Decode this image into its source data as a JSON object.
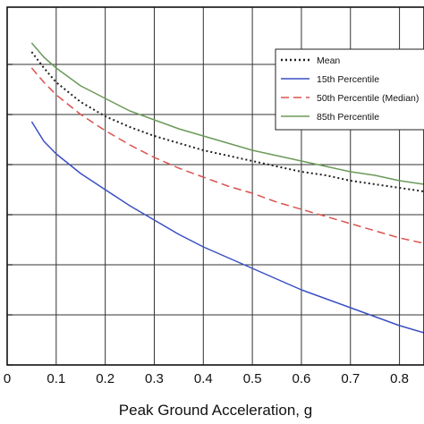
{
  "chart_data": {
    "type": "line",
    "xlabel": "Peak Ground Acceleration, g",
    "ylabel": "",
    "xlim": [
      0,
      0.85
    ],
    "ylim": [
      0,
      1.0
    ],
    "x_ticks": [
      0,
      0.1,
      0.2,
      0.3,
      0.4,
      0.5,
      0.6,
      0.7,
      0.8
    ],
    "x_tick_labels": [
      "0",
      "0.1",
      "0.2",
      "0.3",
      "0.4",
      "0.5",
      "0.6",
      "0.7",
      "0.8"
    ],
    "y_grid": [
      0,
      0.14,
      0.28,
      0.42,
      0.56,
      0.7,
      0.84
    ],
    "grid": true,
    "legend_position": "top-right",
    "series": [
      {
        "name": "Mean",
        "style": "dotted",
        "color": "#222222",
        "x": [
          0.05,
          0.075,
          0.1,
          0.15,
          0.2,
          0.25,
          0.3,
          0.35,
          0.4,
          0.45,
          0.5,
          0.55,
          0.6,
          0.65,
          0.7,
          0.75,
          0.8,
          0.85
        ],
        "y": [
          0.875,
          0.83,
          0.79,
          0.735,
          0.695,
          0.665,
          0.64,
          0.62,
          0.6,
          0.585,
          0.57,
          0.555,
          0.54,
          0.53,
          0.515,
          0.505,
          0.495,
          0.485
        ]
      },
      {
        "name": "15th Percentile",
        "style": "solid",
        "color": "#3a4fc4",
        "x": [
          0.05,
          0.075,
          0.1,
          0.15,
          0.2,
          0.25,
          0.3,
          0.35,
          0.4,
          0.45,
          0.5,
          0.55,
          0.6,
          0.65,
          0.7,
          0.75,
          0.8,
          0.85
        ],
        "y": [
          0.68,
          0.625,
          0.59,
          0.535,
          0.49,
          0.445,
          0.405,
          0.365,
          0.33,
          0.3,
          0.27,
          0.24,
          0.21,
          0.185,
          0.16,
          0.135,
          0.11,
          0.09
        ]
      },
      {
        "name": "50th Percentile (Median)",
        "style": "dashed",
        "color": "#d9534f",
        "x": [
          0.05,
          0.075,
          0.1,
          0.15,
          0.2,
          0.25,
          0.3,
          0.35,
          0.4,
          0.45,
          0.5,
          0.55,
          0.6,
          0.65,
          0.7,
          0.75,
          0.8,
          0.85
        ],
        "y": [
          0.83,
          0.79,
          0.755,
          0.7,
          0.655,
          0.615,
          0.58,
          0.55,
          0.525,
          0.5,
          0.48,
          0.455,
          0.435,
          0.415,
          0.395,
          0.375,
          0.355,
          0.34
        ]
      },
      {
        "name": "85th Percentile",
        "style": "solid",
        "color": "#6b9a5a",
        "x": [
          0.05,
          0.075,
          0.1,
          0.15,
          0.2,
          0.25,
          0.3,
          0.35,
          0.4,
          0.45,
          0.5,
          0.55,
          0.6,
          0.65,
          0.7,
          0.75,
          0.8,
          0.85
        ],
        "y": [
          0.9,
          0.86,
          0.83,
          0.78,
          0.745,
          0.71,
          0.685,
          0.66,
          0.64,
          0.62,
          0.6,
          0.585,
          0.57,
          0.555,
          0.54,
          0.53,
          0.515,
          0.505
        ]
      }
    ]
  }
}
